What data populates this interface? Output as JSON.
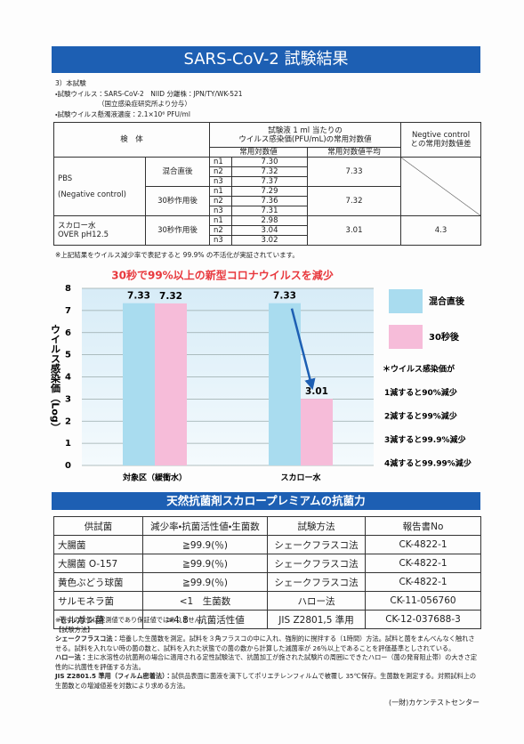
{
  "header": {
    "title": "SARS-CoV-2 試験結果",
    "info": [
      "3）本試験",
      "・試験ウイルス：SARS-CoV-2　NIID 分離株：JPN/TY/WK-521",
      "（国立感染症研究所より分与）",
      "・試験ウイルス懸濁液濃度：2.1×10⁶ PFU/ml"
    ]
  },
  "table1": {
    "header": {
      "sample": "検　体",
      "measure": [
        "試験液 1 ml 当たりの",
        "ウイルス感染価(PFU/mL)の常用対数値"
      ],
      "sub": [
        "常用対数値",
        "常用対数値平均"
      ],
      "negative": [
        "Negtive control",
        "との常用対数値差"
      ]
    },
    "groups": [
      {
        "sample": [
          "PBS",
          "(Negative control)"
        ],
        "conditions": [
          {
            "label": "混合直後",
            "n": [
              "n1",
              "n2",
              "n3"
            ],
            "values": [
              "7.30",
              "7.32",
              "7.37"
            ],
            "average": "7.33"
          },
          {
            "label": "30秒作用後",
            "n": [
              "n1",
              "n2",
              "n3"
            ],
            "values": [
              "7.29",
              "7.36",
              "7.31"
            ],
            "average": "7.32"
          }
        ]
      },
      {
        "sample": [
          "スカロー水",
          "OVER pH12.5"
        ],
        "conditions": [
          {
            "label": "30秒作用後",
            "n": [
              "n1",
              "n2",
              "n3"
            ],
            "values": [
              "2.98",
              "3.04",
              "3.02"
            ],
            "average": "3.01",
            "difference": "4.3"
          }
        ]
      }
    ],
    "note": "※上記結果をウイルス減少率で表記すると 99.9% の不活化が実証されています。"
  },
  "chart_data": {
    "type": "bar",
    "title": "30秒で99%以上の新型コロナウイルスを減少",
    "y_label": "ウイルス感染価（Log）",
    "categories": [
      "対象区（緩衝水）",
      "スカロー水"
    ],
    "series": [
      {
        "name": "混合直後",
        "color": "#a9dcef",
        "values": [
          7.33,
          7.33
        ]
      },
      {
        "name": "30秒後",
        "color": "#f6bcd9",
        "values": [
          7.32,
          3.01
        ]
      }
    ],
    "ylim": [
      0,
      8
    ],
    "yticks": [
      0,
      1,
      2,
      3,
      4,
      5,
      6,
      7,
      8
    ],
    "grid": true,
    "legend": "right",
    "notes": [
      "＊ウイルス感染価が",
      "1減すると90%減少",
      "2減すると99%減少",
      "3減すると99.9%減少",
      "4減すると99.99%減少"
    ]
  },
  "section2": {
    "title": "天然抗菌剤スカロープレミアムの抗菌力",
    "table": {
      "header": [
        "供試菌",
        "減少率・抗菌活性値・生菌数",
        "試験方法",
        "報告書No"
      ],
      "rows": [
        [
          "大腸菌",
          "≧99.9(％)",
          "シェークフラスコ法",
          "CK-4822-1"
        ],
        [
          "大腸菌 O-157",
          "≧99.9(％)",
          "シェークフラスコ法",
          "CK-4822-1"
        ],
        [
          "黄色ぶどう球菌",
          "≧99.9(％)",
          "シェークフラスコ法",
          "CK-4822-1"
        ],
        [
          "サルモネラ菌",
          "<1　生菌数",
          "ハロー法",
          "CK-11-056760"
        ],
        [
          "モルガン菌",
          ">4.8　抗菌活性値",
          "JIS Z2801,5 準用",
          "CK-12-037688-3"
        ]
      ]
    }
  },
  "notes": {
    "disclaimer": "※表中の数値は実測値であり保証値ではありません。",
    "heading": "【試験方法】",
    "methods": [
      {
        "term": "シェークフラスコ法：",
        "text": "培養した生菌数を測定。試料を３角フラスコの中に入れ、強制的に撹拌する（1時間）方法。試料と菌をまんべんなく触れさせる。試料を入れない時の菌の数と、試料を入れた状態での菌の数から計算した減菌率が 26％以上であることを評価基準としされている。"
      },
      {
        "term": "ハロー法：",
        "text": "主に水溶性の抗菌剤の場合に適用される定性試験法で、抗菌加工が施された試験片の周囲にできたハロー（菌の発育阻止帯）の大きさ定性的に抗菌性を評価する方法。"
      },
      {
        "term": "JIS Z2801.5 準用（フィルム密着法）：",
        "text": "試供品表面に菌液を滴下してポリエチレンフィルムで被覆し 35℃保存。生菌数を測定する。対照試料上の生菌数との増減値差を対数により求める方法。"
      }
    ]
  },
  "footer": "(一財)カケンテストセンター"
}
